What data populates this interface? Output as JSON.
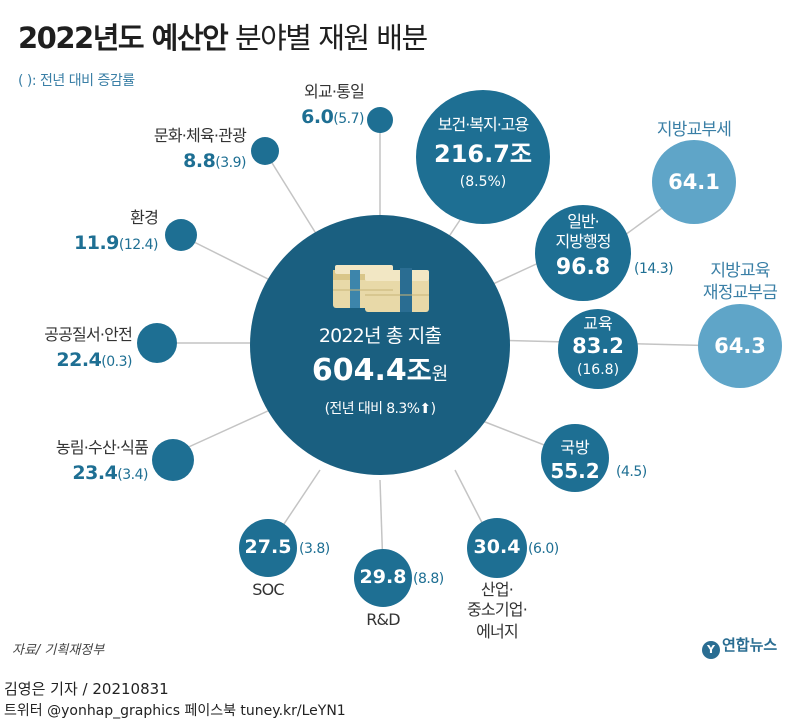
{
  "title": {
    "bold": "2022년도 예산안",
    "thin": "분야별 재원 배분"
  },
  "note": "( ): 전년 대비 증감률",
  "center": {
    "heading": "2022년 총 지출",
    "total": "604.4",
    "unit_big": "조",
    "unit_small": "원",
    "change": "(전년 대비 8.3%",
    "arrow": "⬆",
    "close": ")"
  },
  "sectors": {
    "health": {
      "name": "보건·복지·고용",
      "value": "216.7조",
      "pct": "(8.5%)"
    },
    "general": {
      "name1": "일반·",
      "name2": "지방행정",
      "value": "96.8",
      "pct": "(14.3)"
    },
    "education": {
      "name": "교육",
      "value": "83.2",
      "pct": "(16.8)"
    },
    "defense": {
      "name": "국방",
      "value": "55.2",
      "pct": "(4.5)"
    },
    "industry": {
      "value": "30.4",
      "pct": "(6.0)",
      "name1": "산업·",
      "name2": "중소기업·",
      "name3": "에너지"
    },
    "rnd": {
      "value": "29.8",
      "pct": "(8.8)",
      "name": "R&D"
    },
    "soc": {
      "value": "27.5",
      "pct": "(3.8)",
      "name": "SOC"
    },
    "agri": {
      "name": "농림·수산·식품",
      "value": "23.4",
      "pct": "(3.4)"
    },
    "order": {
      "name": "공공질서·안전",
      "value": "22.4",
      "pct": "(0.3)"
    },
    "env": {
      "name": "환경",
      "value": "11.9",
      "pct": "(12.4)"
    },
    "culture": {
      "name": "문화·체육·관광",
      "value": "8.8",
      "pct": "(3.9)"
    },
    "foreign": {
      "name": "외교·통일",
      "value": "6.0",
      "pct": "(5.7)"
    }
  },
  "transfers": {
    "local_tax": {
      "name": "지방교부세",
      "value": "64.1"
    },
    "local_edu": {
      "name1": "지방교육",
      "name2": "재정교부금",
      "value": "64.3"
    }
  },
  "source": "자료/ 기획재정부",
  "reporter": "김영은 기자 / 20210831",
  "social": "트위터 @yonhap_graphics  페이스북 tuney.kr/LeYN1",
  "logo": "연합뉴스",
  "colors": {
    "primary": "#1e6f93",
    "light": "#5fa5c8",
    "dark": "#1a5f80",
    "line": "#c4c4c4"
  }
}
